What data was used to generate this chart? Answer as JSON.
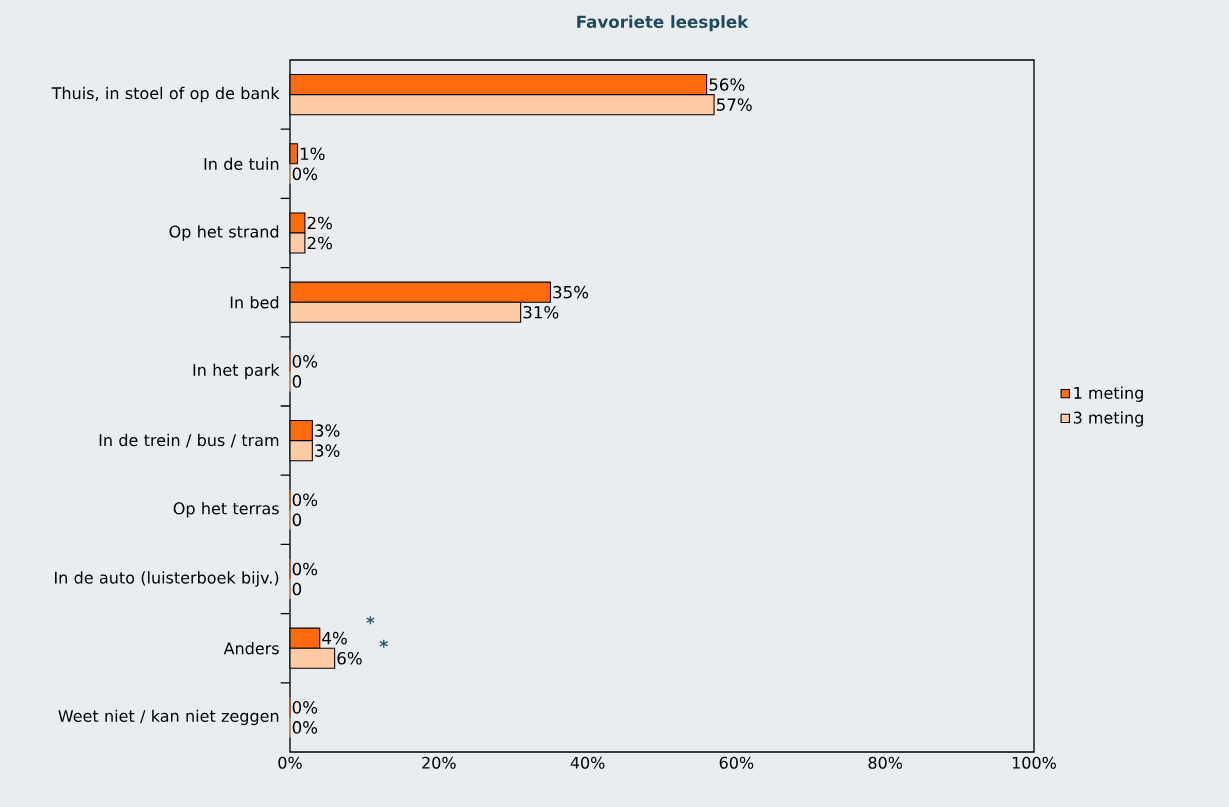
{
  "chart_data": {
    "type": "bar",
    "orientation": "horizontal",
    "title": "Favoriete leesplek",
    "categories": [
      "Thuis, in stoel of op de bank",
      "In de tuin",
      "Op het strand",
      "In bed",
      "In het park",
      "In de trein / bus / tram",
      "Op het terras",
      "In de auto (luisterboek bijv.)",
      "Anders",
      "Weet niet / kan niet zeggen"
    ],
    "series": [
      {
        "name": "1 meting",
        "color": "#ff6a0d",
        "values": [
          56,
          1,
          2,
          35,
          0,
          3,
          0,
          0,
          4,
          0
        ],
        "value_labels": [
          "56%",
          "1%",
          "2%",
          "35%",
          "0%",
          "3%",
          "0%",
          "0%",
          "4%",
          "0%"
        ]
      },
      {
        "name": "3 meting",
        "color": "#ffcba4",
        "values": [
          57,
          0,
          2,
          31,
          0,
          3,
          0,
          0,
          6,
          0
        ],
        "value_labels": [
          "57%",
          "0%",
          "2%",
          "31%",
          "0",
          "3%",
          "0",
          "0",
          "6%",
          "0%"
        ]
      }
    ],
    "xlim": [
      0,
      100
    ],
    "xticks": [
      {
        "value": 0,
        "label": "0%"
      },
      {
        "value": 20,
        "label": "20%"
      },
      {
        "value": 40,
        "label": "40%"
      },
      {
        "value": 60,
        "label": "60%"
      },
      {
        "value": 80,
        "label": "80%"
      },
      {
        "value": 100,
        "label": "100%"
      }
    ],
    "annotations": [
      "*",
      "*"
    ],
    "legend": "right",
    "grid": false
  }
}
